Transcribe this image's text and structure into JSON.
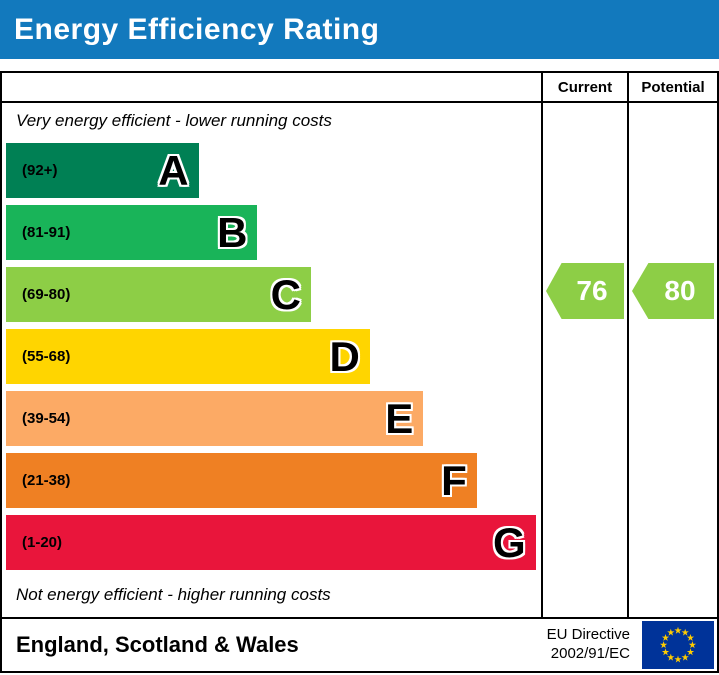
{
  "header": {
    "title": "Energy Efficiency Rating",
    "bg_color": "#1279bd"
  },
  "columns": {
    "current": "Current",
    "potential": "Potential"
  },
  "notes": {
    "top": "Very energy efficient - lower running costs",
    "bottom": "Not energy efficient - higher running costs"
  },
  "bands": [
    {
      "letter": "A",
      "range": "(92+)",
      "color": "#008054",
      "width_pct": 36
    },
    {
      "letter": "B",
      "range": "(81-91)",
      "color": "#19b459",
      "width_pct": 47
    },
    {
      "letter": "C",
      "range": "(69-80)",
      "color": "#8dce46",
      "width_pct": 57
    },
    {
      "letter": "D",
      "range": "(55-68)",
      "color": "#ffd500",
      "width_pct": 68
    },
    {
      "letter": "E",
      "range": "(39-54)",
      "color": "#fcaa65",
      "width_pct": 78
    },
    {
      "letter": "F",
      "range": "(21-38)",
      "color": "#ef8023",
      "width_pct": 88
    },
    {
      "letter": "G",
      "range": "(1-20)",
      "color": "#e9153b",
      "width_pct": 99
    }
  ],
  "ratings": {
    "current": {
      "value": "76",
      "band": "C",
      "color": "#8dce46"
    },
    "potential": {
      "value": "80",
      "band": "C",
      "color": "#8dce46"
    }
  },
  "footer": {
    "region": "England, Scotland & Wales",
    "directive_line1": "EU Directive",
    "directive_line2": "2002/91/EC",
    "flag": {
      "field": "#003399",
      "stars": "#ffcc00"
    }
  },
  "chart_data": {
    "type": "bar",
    "title": "Energy Efficiency Rating",
    "categories": [
      "A",
      "B",
      "C",
      "D",
      "E",
      "F",
      "G"
    ],
    "ranges": [
      "92+",
      "81-91",
      "69-80",
      "55-68",
      "39-54",
      "21-38",
      "1-20"
    ],
    "colors": [
      "#008054",
      "#19b459",
      "#8dce46",
      "#ffd500",
      "#fcaa65",
      "#ef8023",
      "#e9153b"
    ],
    "bar_width_pct": [
      36,
      47,
      57,
      68,
      78,
      88,
      99
    ],
    "series": [
      {
        "name": "Current",
        "values": [
          76
        ],
        "band": "C"
      },
      {
        "name": "Potential",
        "values": [
          80
        ],
        "band": "C"
      }
    ],
    "top_annotation": "Very energy efficient - lower running costs",
    "bottom_annotation": "Not energy efficient - higher running costs",
    "region": "England, Scotland & Wales",
    "directive": "EU Directive 2002/91/EC",
    "value_range": [
      1,
      100
    ]
  }
}
